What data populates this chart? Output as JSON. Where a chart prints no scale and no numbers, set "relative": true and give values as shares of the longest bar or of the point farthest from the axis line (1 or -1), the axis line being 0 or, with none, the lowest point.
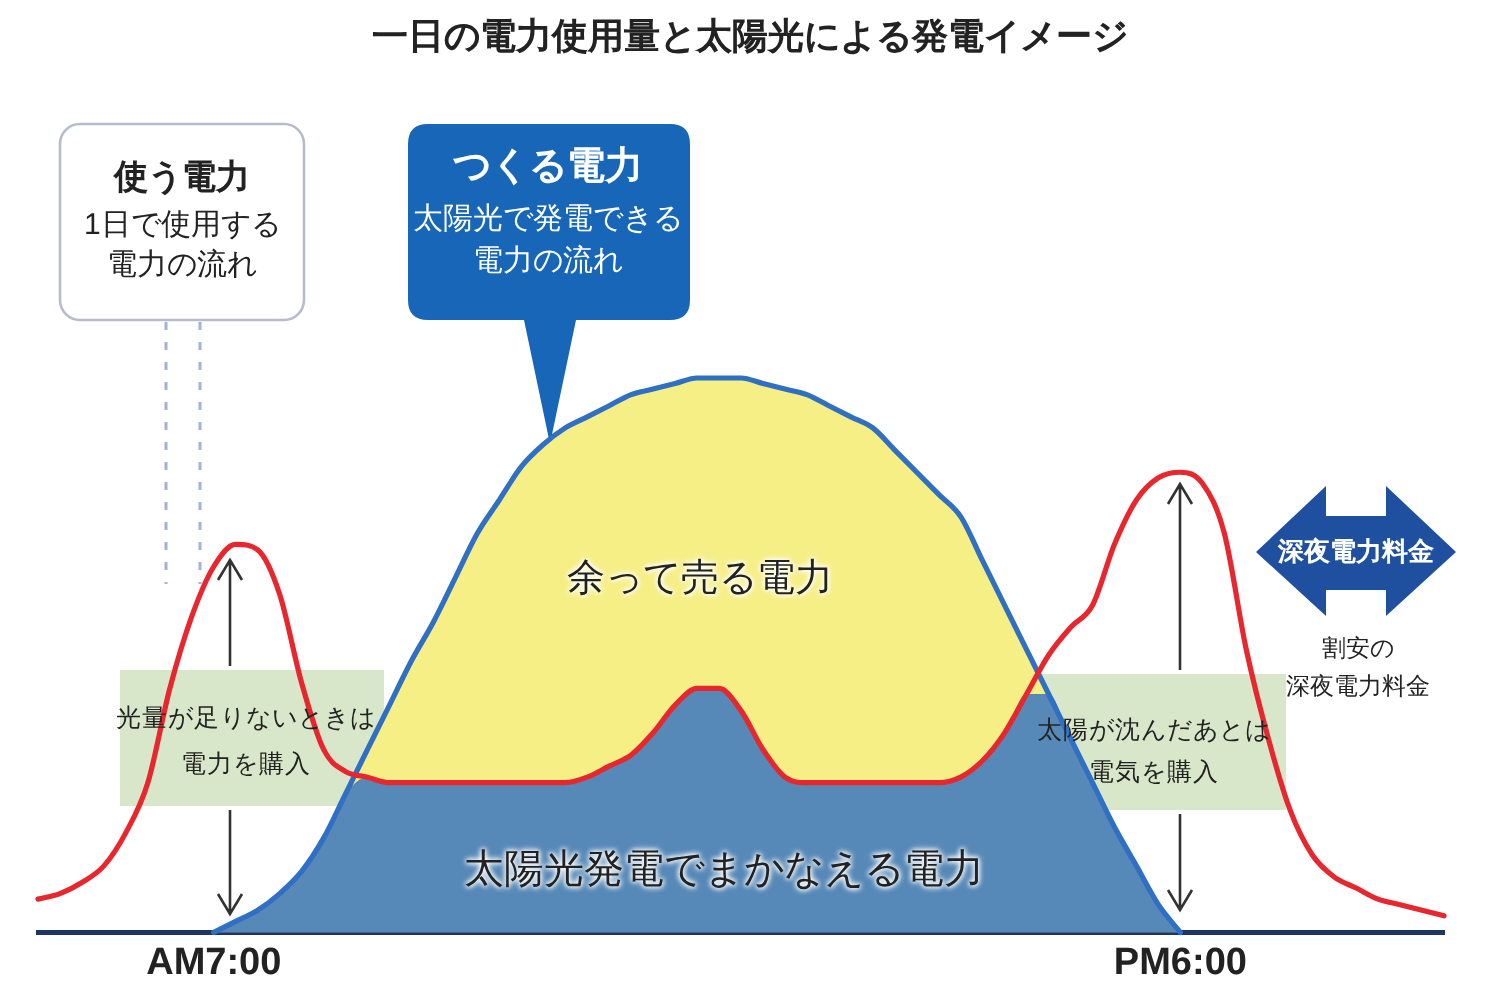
{
  "chart_data": {
    "type": "line",
    "title": "一日の電力使用量と太陽光による発電イメージ",
    "relative": true,
    "categories": [
      null,
      null,
      null,
      null,
      null,
      null,
      null,
      null,
      "AM7:00",
      null,
      null,
      null,
      null,
      null,
      null,
      null,
      null,
      null,
      null,
      null,
      null,
      null,
      null,
      null,
      null,
      null,
      null,
      null,
      null,
      null,
      null,
      null,
      null,
      null,
      null,
      null,
      null,
      null,
      null,
      null,
      null,
      null,
      null,
      null,
      null,
      null,
      null,
      null,
      null,
      null,
      null,
      null,
      "PM6:00",
      null,
      null,
      null,
      null,
      null,
      null,
      null,
      null,
      null,
      null,
      null,
      null
    ],
    "series": [
      {
        "type": "line",
        "color": "#e8262d",
        "values": [
          0.06,
          0.07,
          0.09,
          0.12,
          0.18,
          0.27,
          0.44,
          0.57,
          0.66,
          0.7,
          0.69,
          0.61,
          0.45,
          0.33,
          0.29,
          0.28,
          0.27,
          0.27,
          0.27,
          0.27,
          0.27,
          0.27,
          0.27,
          0.27,
          0.27,
          0.28,
          0.3,
          0.32,
          0.36,
          0.41,
          0.44,
          0.44,
          0.4,
          0.33,
          0.28,
          0.27,
          0.27,
          0.27,
          0.27,
          0.27,
          0.27,
          0.27,
          0.28,
          0.31,
          0.36,
          0.43,
          0.5,
          0.55,
          0.59,
          0.7,
          0.78,
          0.82,
          0.83,
          0.81,
          0.72,
          0.51,
          0.35,
          0.22,
          0.14,
          0.1,
          0.08,
          0.06,
          0.05,
          0.04,
          0.03
        ]
      },
      {
        "type": "area",
        "color": "#f6ef86",
        "values": [
          null,
          null,
          null,
          null,
          null,
          null,
          null,
          null,
          0,
          0.02,
          0.04,
          0.07,
          0.11,
          0.17,
          0.25,
          0.33,
          0.41,
          0.49,
          0.56,
          0.64,
          0.72,
          0.78,
          0.84,
          0.88,
          0.91,
          0.93,
          0.95,
          0.97,
          0.98,
          0.99,
          1.0,
          1.0,
          1.0,
          0.99,
          0.98,
          0.97,
          0.95,
          0.93,
          0.91,
          0.87,
          0.83,
          0.79,
          0.75,
          0.67,
          0.59,
          0.51,
          0.43,
          0.35,
          0.27,
          0.19,
          0.12,
          0.05,
          0,
          null,
          null,
          null,
          null,
          null,
          null,
          null,
          null,
          null,
          null,
          null,
          null
        ]
      },
      {
        "type": "area",
        "color": "#2f6fc4",
        "values": [
          null,
          null,
          null,
          null,
          null,
          null,
          null,
          null,
          0,
          0.02,
          0.04,
          0.07,
          0.11,
          0.17,
          0.25,
          0.28,
          0.27,
          0.27,
          0.27,
          0.27,
          0.27,
          0.27,
          0.27,
          0.27,
          0.27,
          0.28,
          0.3,
          0.32,
          0.36,
          0.41,
          0.44,
          0.44,
          0.4,
          0.33,
          0.28,
          0.27,
          0.27,
          0.27,
          0.27,
          0.27,
          0.27,
          0.27,
          0.28,
          0.31,
          0.36,
          0.43,
          0.43,
          0.35,
          0.27,
          0.19,
          0.12,
          0.05,
          0,
          null,
          null,
          null,
          null,
          null,
          null,
          null,
          null,
          null,
          null,
          null,
          null
        ]
      }
    ],
    "annotations": [
      "使う電力",
      "1日で使用する電力の流れ",
      "つくる電力",
      "太陽光で発電できる電力の流れ",
      "余って売る電力",
      "太陽光発電でまかなえる電力",
      "光量が足りないときは電力を購入",
      "太陽が沈んだあとは電気を購入",
      "深夜電力料金",
      "割安の深夜電力料金"
    ]
  }
}
